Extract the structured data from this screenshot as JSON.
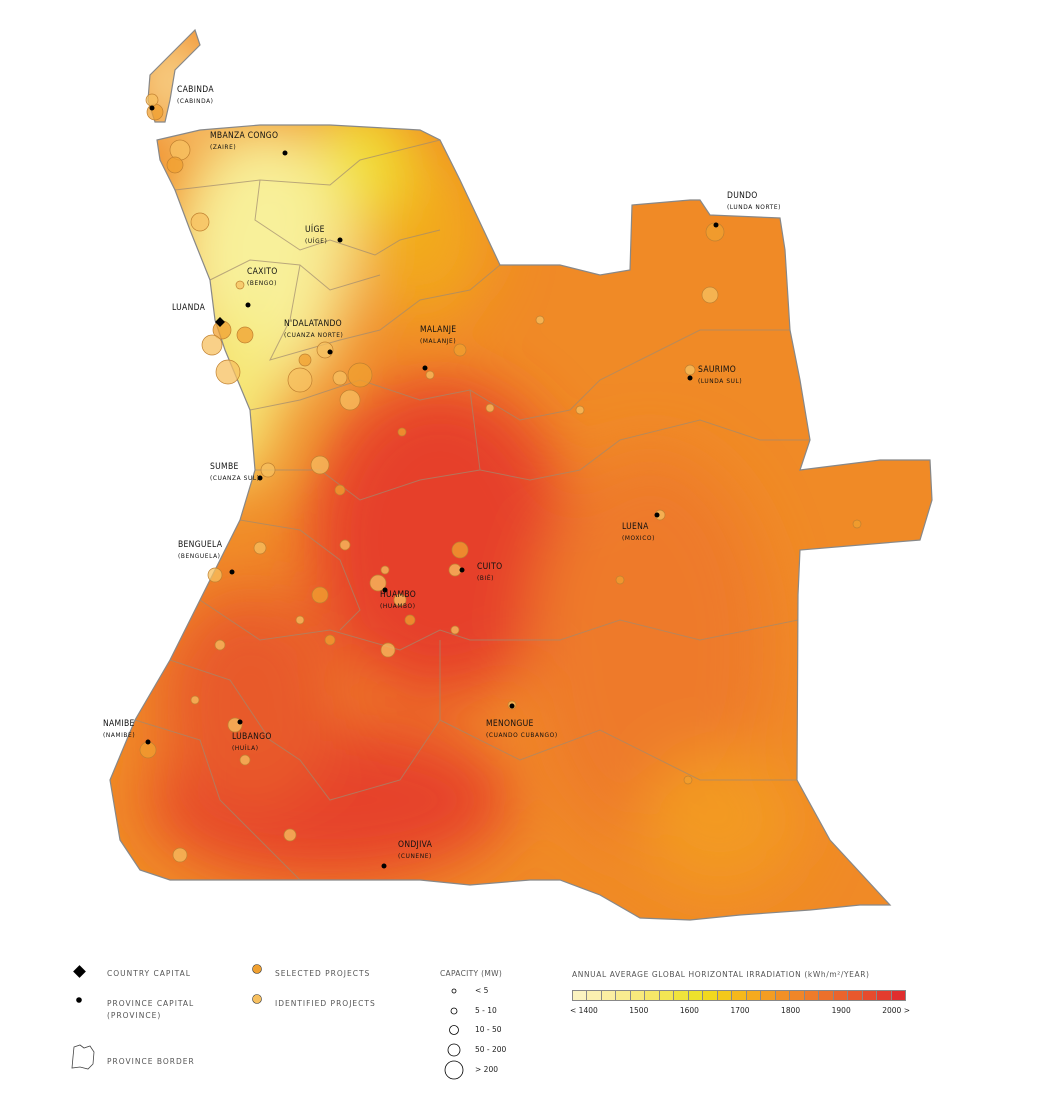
{
  "cities": [
    {
      "name": "CABINDA",
      "province": "(CABINDA)"
    },
    {
      "name": "MBANZA CONGO",
      "province": "(ZAIRE)"
    },
    {
      "name": "UÍGE",
      "province": "(UÍGE)"
    },
    {
      "name": "CAXITO",
      "province": "(BENGO)"
    },
    {
      "name": "LUANDA",
      "province": "",
      "capital": true
    },
    {
      "name": "N'DALATANDO",
      "province": "(CUANZA NORTE)"
    },
    {
      "name": "MALANJE",
      "province": "(MALANJE)"
    },
    {
      "name": "DUNDO",
      "province": "(LUNDA NORTE)"
    },
    {
      "name": "SAURIMO",
      "province": "(LUNDA SUL)"
    },
    {
      "name": "SUMBE",
      "province": "(CUANZA SUL)"
    },
    {
      "name": "BENGUELA",
      "province": "(BENGUELA)"
    },
    {
      "name": "LUENA",
      "province": "(MOXICO)"
    },
    {
      "name": "CUITO",
      "province": "(BIÉ)"
    },
    {
      "name": "HUAMBO",
      "province": "(HUAMBO)"
    },
    {
      "name": "NAMIBE",
      "province": "(NAMIBE)"
    },
    {
      "name": "LUBANGO",
      "province": "(HUÍLA)"
    },
    {
      "name": "MENONGUE",
      "province": "(CUANDO CUBANGO)"
    },
    {
      "name": "ONDJIVA",
      "province": "(CUNENE)"
    }
  ],
  "legend": {
    "country_capital": "COUNTRY CAPITAL",
    "province_capital": "PROVINCE CAPITAL",
    "province_capital_sub": "(PROVINCE)",
    "province_border": "PROVINCE BORDER",
    "selected_projects": "SELECTED PROJECTS",
    "identified_projects": "IDENTIFIED PROJECTS",
    "capacity_title": "CAPACITY (MW)",
    "capacity_classes": [
      "< 5",
      "5 - 10",
      "10 - 50",
      "50 - 200",
      "> 200"
    ],
    "irradiation_title": "ANNUAL AVERAGE GLOBAL HORIZONTAL IRRADIATION (kWh/m²/YEAR)",
    "irradiation_ticks": [
      "< 1400",
      "1500",
      "1600",
      "1700",
      "1800",
      "1900",
      "2000 >"
    ],
    "irradiation_colors": [
      "#fbf3c0",
      "#fbf0b0",
      "#fbeea2",
      "#f9ec90",
      "#f8e97c",
      "#f6e768",
      "#f3e653",
      "#f0e43c",
      "#eee22c",
      "#f1d81e",
      "#f4c81a",
      "#f5b81b",
      "#f5aa1e",
      "#f49d22",
      "#f29025",
      "#f08628",
      "#ee7b2a",
      "#ec702b",
      "#ea642c",
      "#e8582c",
      "#e64b2d",
      "#e33c2e",
      "#e02e2e"
    ],
    "selected_color": "#f0a030",
    "identified_color": "#f7c060"
  }
}
